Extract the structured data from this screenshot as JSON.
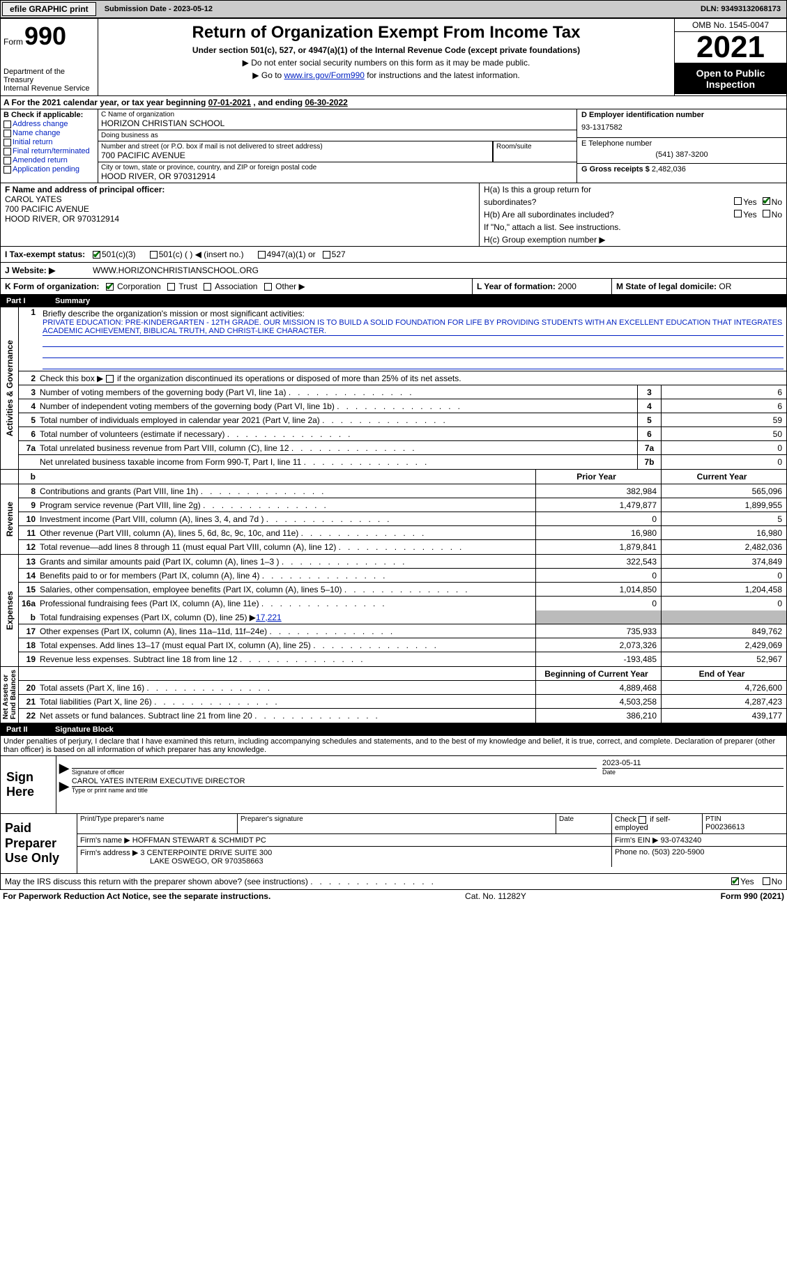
{
  "topbar": {
    "efile_btn": "efile GRAPHIC print",
    "sub_date_label": "Submission Date - ",
    "sub_date": "2023-05-12",
    "dln_label": "DLN: ",
    "dln": "93493132068173"
  },
  "header": {
    "form_label": "Form",
    "form_no": "990",
    "dept": "Department of the Treasury\nInternal Revenue Service",
    "title": "Return of Organization Exempt From Income Tax",
    "subtitle": "Under section 501(c), 527, or 4947(a)(1) of the Internal Revenue Code (except private foundations)",
    "note1": "▶ Do not enter social security numbers on this form as it may be made public.",
    "note2_pre": "▶ Go to ",
    "note2_link": "www.irs.gov/Form990",
    "note2_post": " for instructions and the latest information.",
    "omb": "OMB No. 1545-0047",
    "year": "2021",
    "open_pub": "Open to Public Inspection"
  },
  "line_a": {
    "text_pre": "A For the 2021 calendar year, or tax year beginning ",
    "begin": "07-01-2021",
    "mid": "  , and ending ",
    "end": "06-30-2022"
  },
  "boxB": {
    "label": "B Check if applicable:",
    "items": [
      "Address change",
      "Name change",
      "Initial return",
      "Final return/terminated",
      "Amended return",
      "Application pending"
    ]
  },
  "boxC": {
    "name_label": "C Name of organization",
    "name": "HORIZON CHRISTIAN SCHOOL",
    "dba_label": "Doing business as",
    "dba": "",
    "street_label": "Number and street (or P.O. box if mail is not delivered to street address)",
    "street": "700 PACIFIC AVENUE",
    "room_label": "Room/suite",
    "room": "",
    "city_label": "City or town, state or province, country, and ZIP or foreign postal code",
    "city": "HOOD RIVER, OR  970312914"
  },
  "boxD": {
    "label": "D Employer identification number",
    "val": "93-1317582"
  },
  "boxE": {
    "label": "E Telephone number",
    "val": "(541) 387-3200"
  },
  "boxG": {
    "label": "G Gross receipts $ ",
    "val": "2,482,036"
  },
  "boxF": {
    "label": "F Name and address of principal officer:",
    "name": "CAROL YATES",
    "street": "700 PACIFIC AVENUE",
    "city": "HOOD RIVER, OR  970312914"
  },
  "boxH": {
    "a1": "H(a) Is this a group return for",
    "a2": "subordinates?",
    "b1": "H(b) Are all subordinates included?",
    "b_note": "If \"No,\" attach a list. See instructions.",
    "c": "H(c) Group exemption number ▶",
    "yes": "Yes",
    "no": "No",
    "ha_no_checked": true
  },
  "boxI": {
    "label": "I    Tax-exempt status:",
    "c3": "501(c)(3)",
    "c3_checked": true,
    "c_other": "501(c) (  ) ◀ (insert no.)",
    "a4947": "4947(a)(1) or",
    "s527": "527"
  },
  "boxJ": {
    "label": "J   Website: ▶",
    "val": "WWW.HORIZONCHRISTIANSCHOOL.ORG"
  },
  "boxK": {
    "label": "K Form of organization:",
    "corp": "Corporation",
    "corp_checked": true,
    "trust": "Trust",
    "assoc": "Association",
    "other": "Other ▶"
  },
  "boxL": {
    "label": "L Year of formation: ",
    "val": "2000"
  },
  "boxM": {
    "label": "M State of legal domicile: ",
    "val": "OR"
  },
  "part1": {
    "no": "Part I",
    "title": "Summary"
  },
  "sec_activities": {
    "vlabel": "Activities & Governance",
    "l1_label": "Briefly describe the organization's mission or most significant activities:",
    "l1_text": "PRIVATE EDUCATION: PRE-KINDERGARTEN - 12TH GRADE. OUR MISSION IS TO BUILD A SOLID FOUNDATION FOR LIFE BY PROVIDING STUDENTS WITH AN EXCELLENT EDUCATION THAT INTEGRATES ACADEMIC ACHIEVEMENT, BIBLICAL TRUTH, AND CHRIST-LIKE CHARACTER.",
    "l2": "Check this box ▶        if the organization discontinued its operations or disposed of more than 25% of its net assets.",
    "rows": [
      {
        "n": "3",
        "label": "Number of voting members of the governing body (Part VI, line 1a)",
        "box": "3",
        "val": "6"
      },
      {
        "n": "4",
        "label": "Number of independent voting members of the governing body (Part VI, line 1b)",
        "box": "4",
        "val": "6"
      },
      {
        "n": "5",
        "label": "Total number of individuals employed in calendar year 2021 (Part V, line 2a)",
        "box": "5",
        "val": "59"
      },
      {
        "n": "6",
        "label": "Total number of volunteers (estimate if necessary)",
        "box": "6",
        "val": "50"
      },
      {
        "n": "7a",
        "label": "Total unrelated business revenue from Part VIII, column (C), line 12",
        "box": "7a",
        "val": "0"
      },
      {
        "n": "",
        "label": "Net unrelated business taxable income from Form 990-T, Part I, line 11",
        "box": "7b",
        "val": "0"
      }
    ]
  },
  "twocol_header": {
    "prior": "Prior Year",
    "current": "Current Year"
  },
  "sec_revenue": {
    "vlabel": "Revenue",
    "rows": [
      {
        "n": "8",
        "label": "Contributions and grants (Part VIII, line 1h)",
        "p": "382,984",
        "c": "565,096"
      },
      {
        "n": "9",
        "label": "Program service revenue (Part VIII, line 2g)",
        "p": "1,479,877",
        "c": "1,899,955"
      },
      {
        "n": "10",
        "label": "Investment income (Part VIII, column (A), lines 3, 4, and 7d )",
        "p": "0",
        "c": "5"
      },
      {
        "n": "11",
        "label": "Other revenue (Part VIII, column (A), lines 5, 6d, 8c, 9c, 10c, and 11e)",
        "p": "16,980",
        "c": "16,980"
      },
      {
        "n": "12",
        "label": "Total revenue—add lines 8 through 11 (must equal Part VIII, column (A), line 12)",
        "p": "1,879,841",
        "c": "2,482,036"
      }
    ]
  },
  "sec_expenses": {
    "vlabel": "Expenses",
    "rows": [
      {
        "n": "13",
        "label": "Grants and similar amounts paid (Part IX, column (A), lines 1–3 )",
        "p": "322,543",
        "c": "374,849"
      },
      {
        "n": "14",
        "label": "Benefits paid to or for members (Part IX, column (A), line 4)",
        "p": "0",
        "c": "0"
      },
      {
        "n": "15",
        "label": "Salaries, other compensation, employee benefits (Part IX, column (A), lines 5–10)",
        "p": "1,014,850",
        "c": "1,204,458"
      },
      {
        "n": "16a",
        "label": "Professional fundraising fees (Part IX, column (A), line 11e)",
        "p": "0",
        "c": "0"
      }
    ],
    "l16b_pre": "Total fundraising expenses (Part IX, column (D), line 25) ▶",
    "l16b_val": "17,221",
    "rows2": [
      {
        "n": "17",
        "label": "Other expenses (Part IX, column (A), lines 11a–11d, 11f–24e)",
        "p": "735,933",
        "c": "849,762"
      },
      {
        "n": "18",
        "label": "Total expenses. Add lines 13–17 (must equal Part IX, column (A), line 25)",
        "p": "2,073,326",
        "c": "2,429,069"
      },
      {
        "n": "19",
        "label": "Revenue less expenses. Subtract line 18 from line 12",
        "p": "-193,485",
        "c": "52,967"
      }
    ]
  },
  "sec_netassets": {
    "vlabel": "Net Assets or\nFund Balances",
    "header": {
      "begin": "Beginning of Current Year",
      "end": "End of Year"
    },
    "rows": [
      {
        "n": "20",
        "label": "Total assets (Part X, line 16)",
        "p": "4,889,468",
        "c": "4,726,600"
      },
      {
        "n": "21",
        "label": "Total liabilities (Part X, line 26)",
        "p": "4,503,258",
        "c": "4,287,423"
      },
      {
        "n": "22",
        "label": "Net assets or fund balances. Subtract line 21 from line 20",
        "p": "386,210",
        "c": "439,177"
      }
    ]
  },
  "part2": {
    "no": "Part II",
    "title": "Signature Block"
  },
  "sig_intro": "Under penalties of perjury, I declare that I have examined this return, including accompanying schedules and statements, and to the best of my knowledge and belief, it is true, correct, and complete. Declaration of preparer (other than officer) is based on all information of which preparer has any knowledge.",
  "sign": {
    "left": "Sign Here",
    "sig_label": "Signature of officer",
    "date_val": "2023-05-11",
    "date_label": "Date",
    "name": "CAROL YATES INTERIM EXECUTIVE DIRECTOR",
    "name_label": "Type or print name and title"
  },
  "prep": {
    "left": "Paid Preparer Use Only",
    "r1": {
      "name_lbl": "Print/Type preparer's name",
      "name": "",
      "sig_lbl": "Preparer's signature",
      "sig": "",
      "date_lbl": "Date",
      "date": "",
      "self_lbl": "Check          if self-employed",
      "ptin_lbl": "PTIN",
      "ptin": "P00236613"
    },
    "r2": {
      "firm_lbl": "Firm's name     ▶",
      "firm": "HOFFMAN STEWART & SCHMIDT PC",
      "ein_lbl": "Firm's EIN ▶",
      "ein": "93-0743240"
    },
    "r3": {
      "addr_lbl": "Firm's address ▶",
      "addr1": "3 CENTERPOINTE DRIVE SUITE 300",
      "addr2": "LAKE OSWEGO, OR  970358663",
      "phone_lbl": "Phone no.",
      "phone": "(503) 220-5900"
    }
  },
  "discuss": {
    "text": "May the IRS discuss this return with the preparer shown above? (see instructions)",
    "yes": "Yes",
    "no": "No",
    "yes_checked": true
  },
  "footer": {
    "left": "For Paperwork Reduction Act Notice, see the separate instructions.",
    "mid": "Cat. No. 11282Y",
    "right": "Form 990 (2021)"
  }
}
